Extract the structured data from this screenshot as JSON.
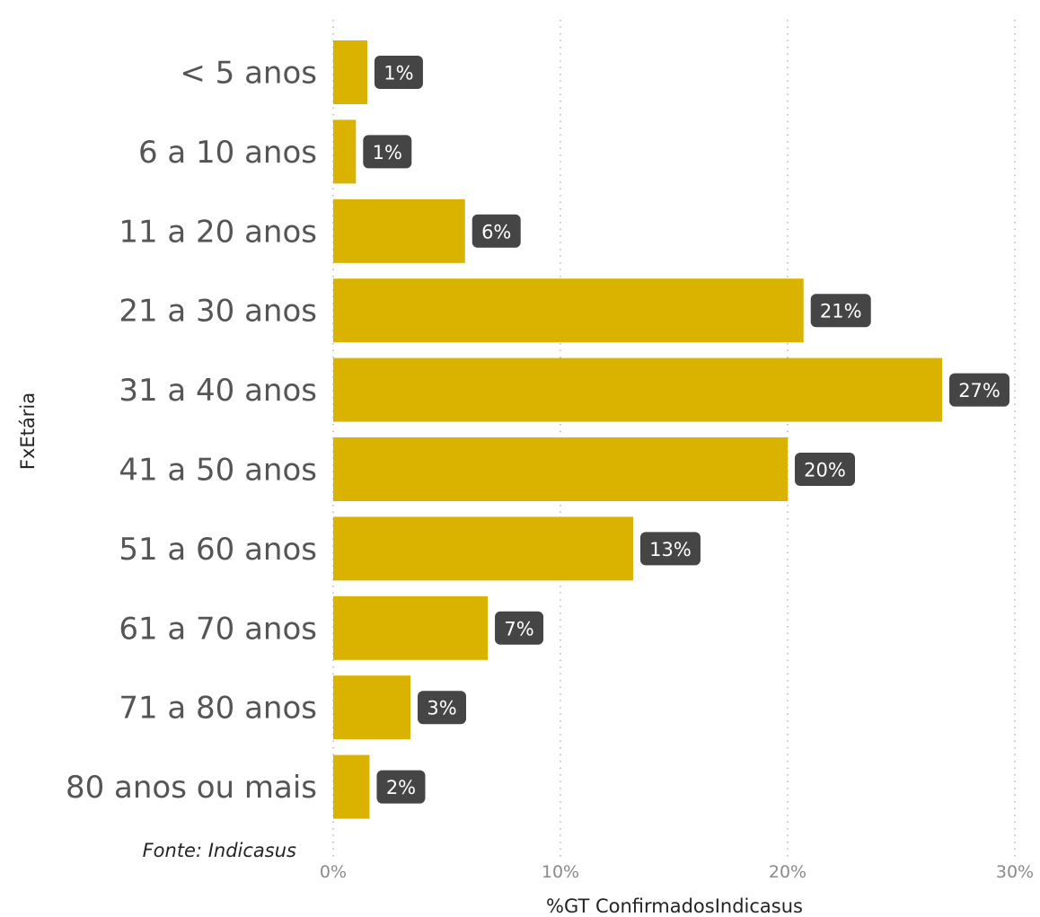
{
  "chart_data": {
    "type": "bar",
    "orientation": "horizontal",
    "categories": [
      "< 5 anos",
      "6 a 10 anos",
      "11 a 20 anos",
      "21 a 30 anos",
      "31 a 40 anos",
      "41 a 50 anos",
      "51 a 60 anos",
      "61 a 70 anos",
      "71 a 80 anos",
      "80 anos ou mais"
    ],
    "values": [
      1.5,
      1.0,
      5.8,
      20.7,
      26.8,
      20.0,
      13.2,
      6.8,
      3.4,
      1.6
    ],
    "data_labels": [
      "1%",
      "1%",
      "6%",
      "21%",
      "27%",
      "20%",
      "13%",
      "7%",
      "3%",
      "2%"
    ],
    "xlabel": "%GT ConfirmadosIndicasus",
    "ylabel": "FxEtária",
    "xlim": [
      0,
      30
    ],
    "x_ticks": [
      0,
      10,
      20,
      30
    ],
    "x_tick_labels": [
      "0%",
      "10%",
      "20%",
      "30%"
    ],
    "grid": "vertical-dotted",
    "source_note": "Fonte: Indicasus",
    "colors": {
      "bar": "#d9b300",
      "label_bg": "#454545",
      "label_text": "#ffffff"
    }
  }
}
